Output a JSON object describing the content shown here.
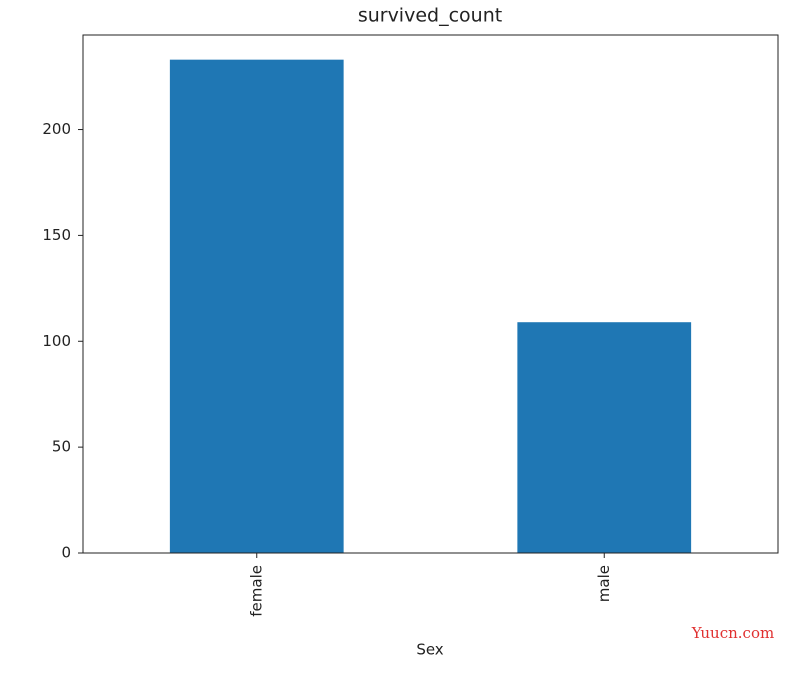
{
  "chart_data": {
    "type": "bar",
    "title": "survived_count",
    "x_label": "Sex",
    "categories": [
      "female",
      "male"
    ],
    "values": [
      233,
      109
    ],
    "color": "#1f77b4",
    "ylim": [
      0,
      244.65
    ],
    "yticks": [
      0,
      50,
      100,
      150,
      200
    ],
    "grid": false
  },
  "watermark": "Yuucn.com"
}
